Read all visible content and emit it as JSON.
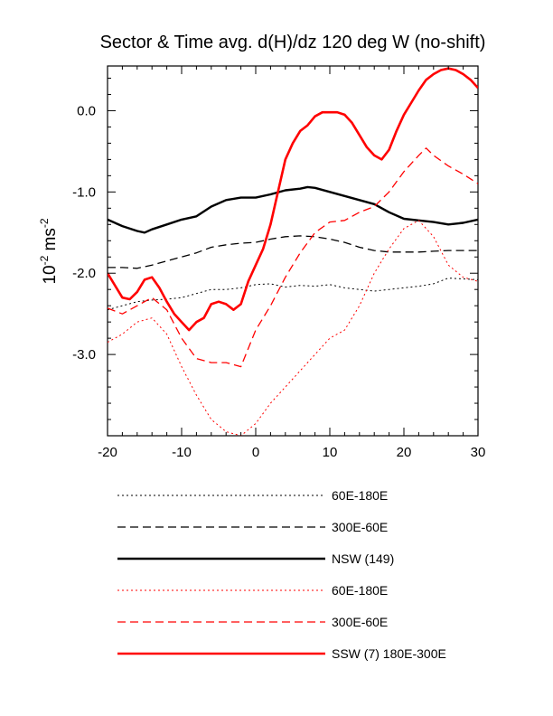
{
  "chart_data": {
    "type": "line",
    "title": "Sector & Time avg. d(H)/dz 120 deg W (no-shift)",
    "ylabel": {
      "base": "10",
      "exp1": "-2",
      "unit": " ms",
      "exp2": "-2"
    },
    "xlabel": "",
    "xlim": [
      -20,
      30
    ],
    "ylim": [
      -4.0,
      0.55
    ],
    "xticks": [
      -20,
      -10,
      0,
      10,
      20,
      30
    ],
    "xtick_labels": [
      "-20",
      "-10",
      "0",
      "10",
      "20",
      "30"
    ],
    "yticks": [
      -3.0,
      -2.0,
      -1.0,
      0.0
    ],
    "ytick_labels": [
      "-3.0",
      "-2.0",
      "-1.0",
      "0.0"
    ],
    "grid": false,
    "legend_position": "below",
    "series": [
      {
        "name": "60E-180E",
        "color": "#000000",
        "style": "dotted",
        "width": 1,
        "x": [
          -20,
          -18,
          -16,
          -14,
          -12,
          -10,
          -8,
          -6,
          -4,
          -2,
          0,
          2,
          4,
          6,
          8,
          10,
          12,
          14,
          16,
          18,
          20,
          22,
          24,
          26,
          28,
          30
        ],
        "y": [
          -2.45,
          -2.4,
          -2.35,
          -2.33,
          -2.32,
          -2.3,
          -2.25,
          -2.2,
          -2.2,
          -2.18,
          -2.14,
          -2.13,
          -2.17,
          -2.15,
          -2.16,
          -2.14,
          -2.18,
          -2.2,
          -2.22,
          -2.2,
          -2.18,
          -2.16,
          -2.13,
          -2.06,
          -2.07,
          -2.08
        ]
      },
      {
        "name": "300E-60E",
        "color": "#000000",
        "style": "dashed",
        "width": 1.3,
        "x": [
          -20,
          -18,
          -16,
          -14,
          -12,
          -10,
          -8,
          -6,
          -4,
          -2,
          0,
          2,
          4,
          6,
          8,
          10,
          12,
          14,
          16,
          18,
          20,
          22,
          24,
          26,
          28,
          30
        ],
        "y": [
          -1.93,
          -1.93,
          -1.94,
          -1.9,
          -1.85,
          -1.8,
          -1.75,
          -1.68,
          -1.65,
          -1.63,
          -1.62,
          -1.58,
          -1.55,
          -1.54,
          -1.55,
          -1.58,
          -1.62,
          -1.68,
          -1.72,
          -1.74,
          -1.74,
          -1.74,
          -1.73,
          -1.72,
          -1.72,
          -1.72
        ]
      },
      {
        "name": "NSW (149)",
        "color": "#000000",
        "style": "solid",
        "width": 2.4,
        "x": [
          -20,
          -18,
          -16,
          -15,
          -14,
          -12,
          -10,
          -8,
          -6,
          -4,
          -2,
          0,
          2,
          4,
          6,
          7,
          8,
          10,
          12,
          14,
          16,
          18,
          20,
          22,
          24,
          26,
          28,
          30
        ],
        "y": [
          -1.34,
          -1.42,
          -1.48,
          -1.5,
          -1.46,
          -1.4,
          -1.34,
          -1.3,
          -1.18,
          -1.1,
          -1.07,
          -1.07,
          -1.03,
          -0.98,
          -0.96,
          -0.94,
          -0.95,
          -1.0,
          -1.05,
          -1.1,
          -1.15,
          -1.25,
          -1.33,
          -1.35,
          -1.37,
          -1.4,
          -1.38,
          -1.34
        ]
      },
      {
        "name": "60E-180E",
        "color": "#ff0000",
        "style": "dotted",
        "width": 1,
        "x": [
          -20,
          -18,
          -16,
          -14,
          -12,
          -10,
          -8,
          -6,
          -4,
          -2,
          0,
          2,
          4,
          6,
          8,
          10,
          12,
          14,
          16,
          18,
          20,
          22,
          24,
          26,
          28,
          30
        ],
        "y": [
          -2.85,
          -2.75,
          -2.6,
          -2.55,
          -2.75,
          -3.15,
          -3.5,
          -3.8,
          -3.95,
          -4.0,
          -3.85,
          -3.6,
          -3.4,
          -3.2,
          -3.0,
          -2.8,
          -2.7,
          -2.4,
          -2.0,
          -1.7,
          -1.45,
          -1.35,
          -1.55,
          -1.9,
          -2.05,
          -2.1
        ]
      },
      {
        "name": "300E-60E",
        "color": "#ff0000",
        "style": "dashed",
        "width": 1.3,
        "x": [
          -20,
          -18,
          -16,
          -14,
          -12,
          -10,
          -8,
          -6,
          -4,
          -2,
          0,
          2,
          4,
          6,
          8,
          10,
          12,
          14,
          16,
          18,
          20,
          22,
          23,
          24,
          26,
          28,
          30
        ],
        "y": [
          -2.43,
          -2.5,
          -2.4,
          -2.3,
          -2.45,
          -2.8,
          -3.05,
          -3.1,
          -3.1,
          -3.15,
          -2.7,
          -2.4,
          -2.05,
          -1.75,
          -1.5,
          -1.37,
          -1.35,
          -1.25,
          -1.18,
          -1.0,
          -0.75,
          -0.55,
          -0.46,
          -0.55,
          -0.68,
          -0.78,
          -0.9
        ]
      },
      {
        "name": "SSW (7) 180E-300E",
        "color": "#ff0000",
        "style": "solid",
        "width": 2.6,
        "x": [
          -20,
          -18,
          -17,
          -16,
          -15,
          -14,
          -13,
          -12,
          -11,
          -10,
          -9,
          -8,
          -7,
          -6,
          -5,
          -4,
          -3,
          -2,
          -1,
          0,
          1,
          2,
          3,
          4,
          5,
          6,
          7,
          8,
          9,
          10,
          11,
          12,
          13,
          14,
          15,
          16,
          17,
          18,
          19,
          20,
          21,
          22,
          23,
          24,
          25,
          26,
          27,
          28,
          29,
          30
        ],
        "y": [
          -2.0,
          -2.3,
          -2.32,
          -2.23,
          -2.08,
          -2.05,
          -2.18,
          -2.35,
          -2.5,
          -2.6,
          -2.7,
          -2.6,
          -2.55,
          -2.38,
          -2.35,
          -2.38,
          -2.45,
          -2.38,
          -2.1,
          -1.9,
          -1.7,
          -1.4,
          -1.0,
          -0.6,
          -0.4,
          -0.25,
          -0.18,
          -0.07,
          -0.02,
          -0.02,
          -0.02,
          -0.05,
          -0.15,
          -0.3,
          -0.45,
          -0.55,
          -0.6,
          -0.48,
          -0.25,
          -0.05,
          0.1,
          0.25,
          0.38,
          0.45,
          0.5,
          0.52,
          0.5,
          0.45,
          0.38,
          0.28
        ]
      }
    ]
  }
}
